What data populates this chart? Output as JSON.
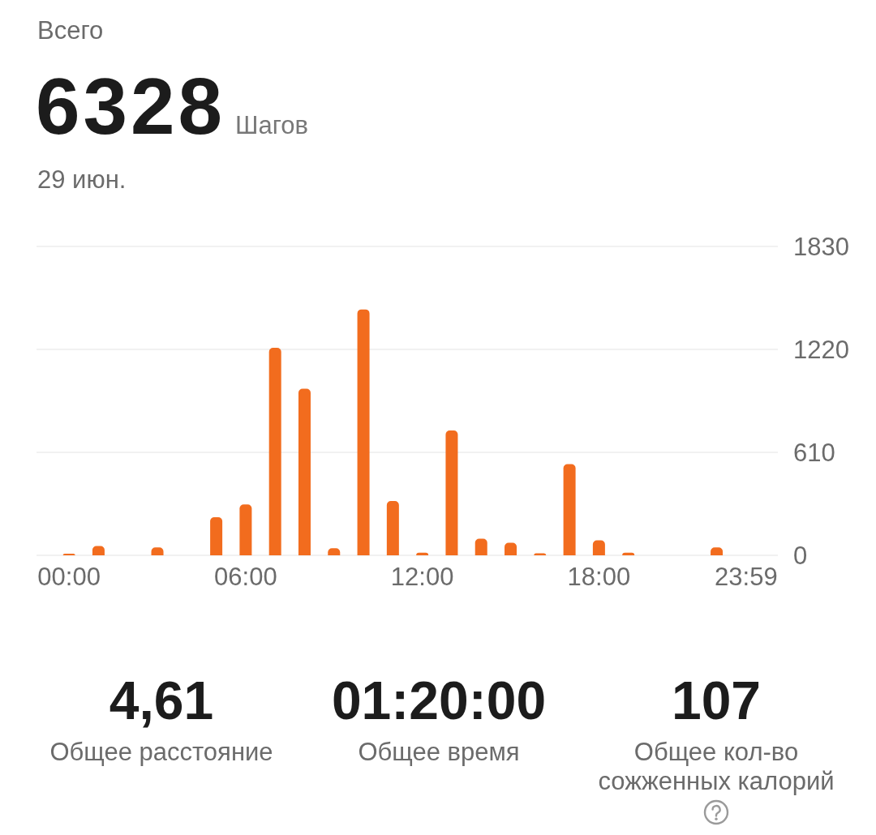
{
  "chart_data": [
    {
      "type": "bar",
      "title": "Всего",
      "subtitle": "29 июн.",
      "annotations": [
        "6328",
        "Шагов"
      ],
      "categories": [
        "00:00",
        null,
        null,
        null,
        null,
        null,
        "06:00",
        null,
        null,
        null,
        null,
        null,
        "12:00",
        null,
        null,
        null,
        null,
        null,
        "18:00",
        null,
        null,
        null,
        null,
        "23:59"
      ],
      "values": [
        10,
        55,
        0,
        47,
        0,
        226,
        301,
        1230,
        987,
        42,
        1457,
        322,
        16,
        740,
        98,
        74,
        12,
        540,
        89,
        16,
        0,
        0,
        47,
        0
      ],
      "color": "#f26c1e",
      "ylim": [
        0,
        1830
      ],
      "yticks": [
        0,
        610,
        1220,
        1830
      ],
      "grid": "y"
    },
    {
      "type": "other",
      "annotations": [
        "4,61",
        "Общее расстояние",
        "01:20:00",
        "Общее время",
        "107",
        "Общее кол-во сожженных калорий"
      ]
    }
  ]
}
